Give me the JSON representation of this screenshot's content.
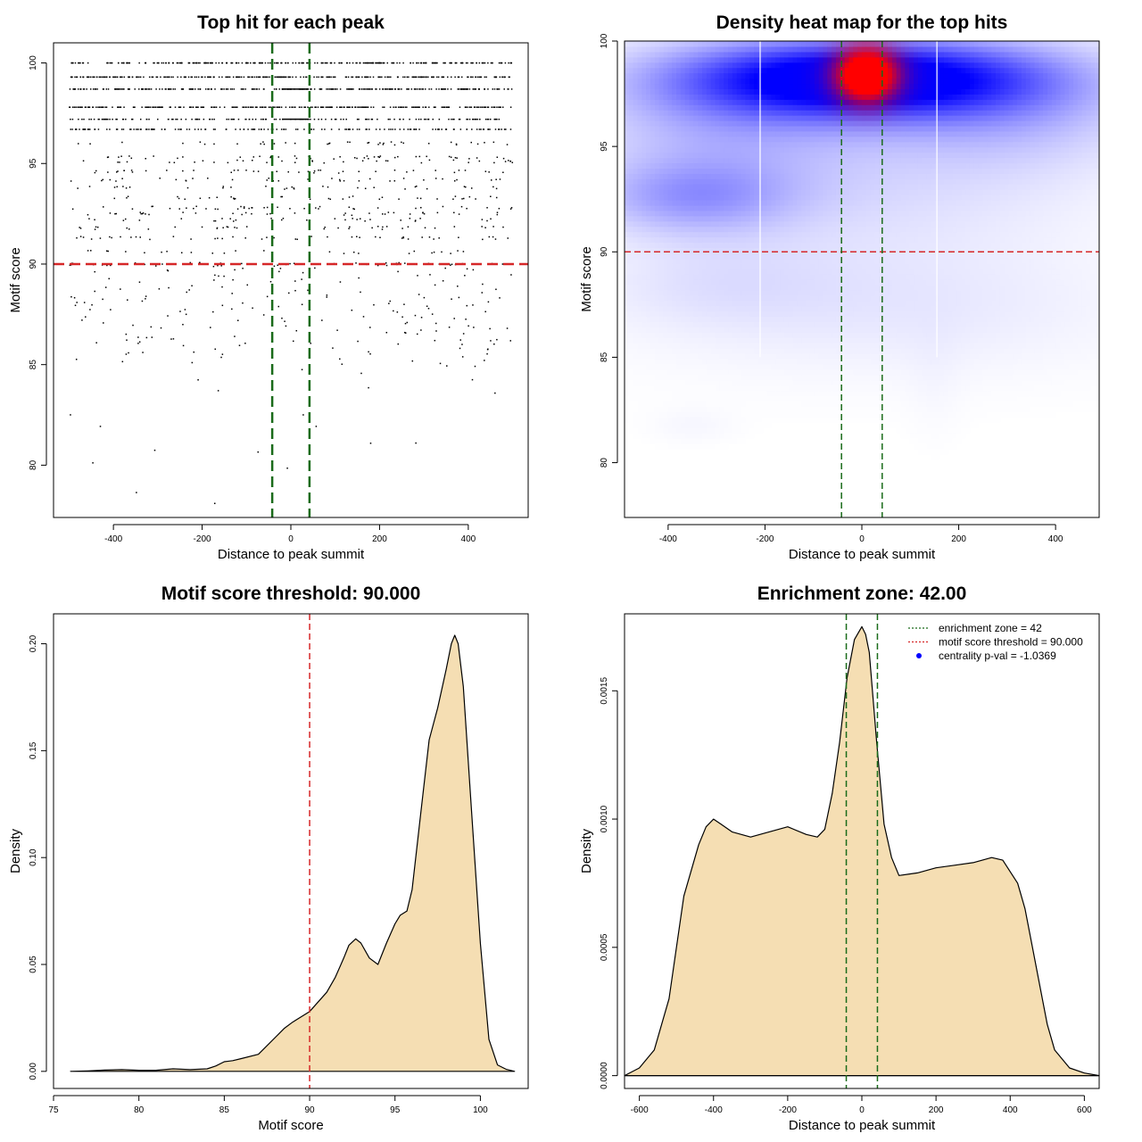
{
  "colors": {
    "threshold_line": "#d62728",
    "zone_line": "#1a6b1a",
    "density_fill": "#f5deb3",
    "heat_low": "#ffffff",
    "heat_mid": "#0000ff",
    "heat_high": "#ff0000",
    "points": "#000000",
    "legend_point": "#0000ff"
  },
  "chart_data": [
    {
      "id": "scatter",
      "type": "scatter",
      "title": "Top hit for each peak",
      "xlabel": "Distance to peak summit",
      "ylabel": "Motif score",
      "xlim": [
        -535,
        535
      ],
      "ylim": [
        77.4,
        101
      ],
      "xticks": [
        -400,
        -200,
        0,
        200,
        400
      ],
      "xtick_labels": [
        "-400",
        "-200",
        "0",
        "200",
        "400"
      ],
      "yticks": [
        80,
        85,
        90,
        95,
        100
      ],
      "ytick_labels": [
        "80",
        "85",
        "90",
        "95",
        "100"
      ],
      "threshold_y": 90,
      "zone_x": [
        -42,
        42
      ],
      "score_levels": [
        100,
        99.3,
        98.7,
        97.8,
        97.2,
        96.7
      ],
      "x_range": [
        -500,
        500
      ]
    },
    {
      "id": "heatmap",
      "type": "heatmap",
      "title": "Density heat map for the top hits",
      "xlabel": "Distance to peak summit",
      "ylabel": "Motif score",
      "xlim": [
        -490,
        490
      ],
      "ylim": [
        77.4,
        100
      ],
      "xticks": [
        -400,
        -200,
        0,
        200,
        400
      ],
      "xtick_labels": [
        "-400",
        "-200",
        "0",
        "200",
        "400"
      ],
      "yticks": [
        80,
        85,
        90,
        95,
        100
      ],
      "ytick_labels": [
        "80",
        "85",
        "90",
        "95",
        "100"
      ],
      "threshold_y": 90,
      "zone_x": [
        -42,
        42
      ],
      "hotspot": {
        "x": 10,
        "y": 98.4
      },
      "blobs": [
        {
          "x": 0,
          "y": 98.3,
          "sx": 250,
          "sy": 1.2,
          "w": 0.95
        },
        {
          "x": -50,
          "y": 97.8,
          "sx": 230,
          "sy": 1.5,
          "w": 0.28
        },
        {
          "x": 300,
          "y": 97.0,
          "sx": 200,
          "sy": 2.0,
          "w": 0.28
        },
        {
          "x": -300,
          "y": 96.0,
          "sx": 200,
          "sy": 2.5,
          "w": 0.22
        },
        {
          "x": -350,
          "y": 92.6,
          "sx": 140,
          "sy": 1.2,
          "w": 0.3
        },
        {
          "x": 0,
          "y": 93.0,
          "sx": 330,
          "sy": 2.2,
          "w": 0.12
        },
        {
          "x": -300,
          "y": 88.5,
          "sx": 180,
          "sy": 1.5,
          "w": 0.09
        },
        {
          "x": 100,
          "y": 88.0,
          "sx": 300,
          "sy": 2.0,
          "w": 0.07
        },
        {
          "x": 0,
          "y": 86.0,
          "sx": 400,
          "sy": 2.0,
          "w": 0.03
        },
        {
          "x": -350,
          "y": 81.8,
          "sx": 60,
          "sy": 0.6,
          "w": 0.03
        },
        {
          "x": 150,
          "y": 84.0,
          "sx": 40,
          "sy": 2.0,
          "w": 0.02
        }
      ],
      "peak": {
        "x": 10,
        "y": 98.4,
        "sx": 45,
        "sy": 0.9,
        "w": 1.6
      },
      "vertical_gaps": [
        -210,
        155
      ]
    },
    {
      "id": "score_density",
      "type": "area",
      "title": "Motif score threshold: 90.000",
      "xlabel": "Motif score",
      "ylabel": "Density",
      "xlim": [
        75,
        102.8
      ],
      "ylim": [
        -0.008,
        0.214
      ],
      "xticks": [
        75,
        80,
        85,
        90,
        95,
        100
      ],
      "xtick_labels": [
        "75",
        "80",
        "85",
        "90",
        "95",
        "100"
      ],
      "yticks": [
        0,
        0.05,
        0.1,
        0.15,
        0.2
      ],
      "ytick_labels": [
        "0.00",
        "0.05",
        "0.10",
        "0.15",
        "0.20"
      ],
      "threshold_x": 90,
      "x": [
        76,
        77,
        78,
        79,
        80,
        81,
        82,
        83,
        84,
        84.5,
        85,
        85.5,
        86,
        87,
        88,
        88.5,
        89,
        90,
        91,
        91.5,
        92,
        92.3,
        92.7,
        93,
        93.5,
        94,
        94.5,
        95,
        95.3,
        95.7,
        96,
        96.5,
        97,
        97.5,
        98,
        98.3,
        98.5,
        98.7,
        99,
        99.5,
        100,
        100.5,
        101,
        101.5,
        102
      ],
      "y": [
        0,
        0.0002,
        0.0006,
        0.0008,
        0.0005,
        0.0005,
        0.0012,
        0.0008,
        0.0012,
        0.0025,
        0.0045,
        0.005,
        0.006,
        0.008,
        0.016,
        0.02,
        0.023,
        0.028,
        0.037,
        0.044,
        0.053,
        0.059,
        0.062,
        0.06,
        0.053,
        0.05,
        0.06,
        0.069,
        0.073,
        0.075,
        0.085,
        0.12,
        0.155,
        0.17,
        0.188,
        0.2,
        0.204,
        0.2,
        0.18,
        0.12,
        0.06,
        0.015,
        0.003,
        0.001,
        0
      ]
    },
    {
      "id": "distance_density",
      "type": "area",
      "title": "Enrichment zone: 42.00",
      "xlabel": "Distance to peak summit",
      "ylabel": "Density",
      "xlim": [
        -640,
        640
      ],
      "ylim": [
        -5e-05,
        0.0018
      ],
      "xticks": [
        -600,
        -400,
        -200,
        0,
        200,
        400,
        600
      ],
      "xtick_labels": [
        "-600",
        "-400",
        "-200",
        "0",
        "200",
        "400",
        "600"
      ],
      "yticks": [
        0,
        0.0005,
        0.001,
        0.0015
      ],
      "ytick_labels": [
        "0.0000",
        "0.0005",
        "0.0010",
        "0.0015"
      ],
      "zone_x": [
        -42,
        42
      ],
      "x": [
        -640,
        -600,
        -560,
        -520,
        -500,
        -480,
        -460,
        -440,
        -420,
        -400,
        -380,
        -350,
        -300,
        -250,
        -200,
        -150,
        -120,
        -100,
        -80,
        -60,
        -40,
        -20,
        0,
        10,
        20,
        40,
        60,
        80,
        100,
        150,
        200,
        250,
        300,
        350,
        380,
        420,
        440,
        460,
        480,
        500,
        520,
        560,
        600,
        640
      ],
      "y": [
        0,
        3e-05,
        0.0001,
        0.0003,
        0.0005,
        0.0007,
        0.0008,
        0.0009,
        0.00097,
        0.001,
        0.00098,
        0.00095,
        0.00093,
        0.00095,
        0.00097,
        0.00094,
        0.00093,
        0.00096,
        0.0011,
        0.0013,
        0.00155,
        0.0017,
        0.00175,
        0.00172,
        0.00165,
        0.0013,
        0.00098,
        0.00085,
        0.00078,
        0.00079,
        0.00081,
        0.00082,
        0.00083,
        0.00085,
        0.00084,
        0.00075,
        0.00065,
        0.0005,
        0.00035,
        0.0002,
        0.0001,
        3e-05,
        1e-05,
        0
      ],
      "legend": [
        {
          "label": "enrichment zone = 42",
          "kind": "line",
          "color": "#1a6b1a"
        },
        {
          "label": "motif score threshold = 90.000",
          "kind": "line",
          "color": "#d62728"
        },
        {
          "label": "centrality p-val = -1.0369",
          "kind": "point",
          "color": "#0000ff"
        }
      ]
    }
  ]
}
